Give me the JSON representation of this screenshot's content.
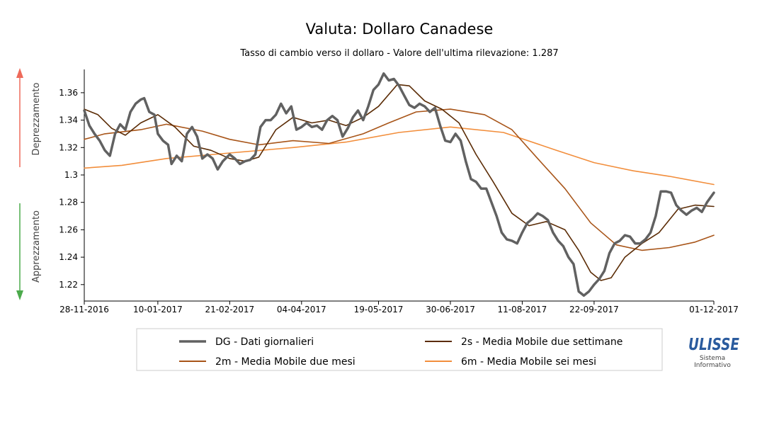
{
  "chart_data": {
    "type": "line",
    "title": "Valuta: Dollaro Canadese",
    "subtitle": "Tasso di cambio verso il dollaro - Valore dell'ultima rilevazione: 1.287",
    "xlabel": "",
    "ylabel": "",
    "side_labels": {
      "up": "Deprezzamento",
      "down": "Apprezzamento"
    },
    "x_range": [
      "2016-11-28",
      "2017-12-01"
    ],
    "ylim": [
      1.208,
      1.377
    ],
    "y_ticks": [
      1.22,
      1.24,
      1.26,
      1.28,
      1.3,
      1.32,
      1.34,
      1.36
    ],
    "x_tick_labels": [
      {
        "date": "2016-11-28",
        "label": "28-11-2016"
      },
      {
        "date": "2017-01-10",
        "label": "10-01-2017"
      },
      {
        "date": "2017-02-21",
        "label": "21-02-2017"
      },
      {
        "date": "2017-04-04",
        "label": "04-04-2017"
      },
      {
        "date": "2017-05-19",
        "label": "19-05-2017"
      },
      {
        "date": "2017-06-30",
        "label": "30-06-2017"
      },
      {
        "date": "2017-08-11",
        "label": "11-08-2017"
      },
      {
        "date": "2017-09-22",
        "label": "22-09-2017"
      },
      {
        "date": "2017-12-01",
        "label": "01-12-2017"
      }
    ],
    "grid": false,
    "legend_position": "bottom",
    "series": [
      {
        "name": "DG - Dati giornalieri",
        "color": "#616161",
        "points": [
          [
            "2016-11-28",
            1.347
          ],
          [
            "2016-12-01",
            1.336
          ],
          [
            "2016-12-04",
            1.33
          ],
          [
            "2016-12-07",
            1.325
          ],
          [
            "2016-12-10",
            1.318
          ],
          [
            "2016-12-13",
            1.314
          ],
          [
            "2016-12-16",
            1.33
          ],
          [
            "2016-12-19",
            1.337
          ],
          [
            "2016-12-22",
            1.333
          ],
          [
            "2016-12-25",
            1.346
          ],
          [
            "2016-12-28",
            1.352
          ],
          [
            "2016-12-31",
            1.355
          ],
          [
            "2017-01-02",
            1.356
          ],
          [
            "2017-01-05",
            1.346
          ],
          [
            "2017-01-08",
            1.344
          ],
          [
            "2017-01-10",
            1.33
          ],
          [
            "2017-01-13",
            1.325
          ],
          [
            "2017-01-16",
            1.322
          ],
          [
            "2017-01-18",
            1.308
          ],
          [
            "2017-01-21",
            1.314
          ],
          [
            "2017-01-24",
            1.31
          ],
          [
            "2017-01-27",
            1.33
          ],
          [
            "2017-01-30",
            1.335
          ],
          [
            "2017-02-02",
            1.328
          ],
          [
            "2017-02-05",
            1.312
          ],
          [
            "2017-02-08",
            1.315
          ],
          [
            "2017-02-11",
            1.312
          ],
          [
            "2017-02-14",
            1.304
          ],
          [
            "2017-02-17",
            1.31
          ],
          [
            "2017-02-21",
            1.315
          ],
          [
            "2017-02-24",
            1.312
          ],
          [
            "2017-02-27",
            1.308
          ],
          [
            "2017-03-02",
            1.31
          ],
          [
            "2017-03-05",
            1.311
          ],
          [
            "2017-03-08",
            1.315
          ],
          [
            "2017-03-11",
            1.335
          ],
          [
            "2017-03-14",
            1.34
          ],
          [
            "2017-03-17",
            1.34
          ],
          [
            "2017-03-20",
            1.344
          ],
          [
            "2017-03-23",
            1.352
          ],
          [
            "2017-03-26",
            1.345
          ],
          [
            "2017-03-29",
            1.35
          ],
          [
            "2017-04-01",
            1.333
          ],
          [
            "2017-04-04",
            1.335
          ],
          [
            "2017-04-07",
            1.338
          ],
          [
            "2017-04-10",
            1.335
          ],
          [
            "2017-04-13",
            1.336
          ],
          [
            "2017-04-16",
            1.333
          ],
          [
            "2017-04-19",
            1.34
          ],
          [
            "2017-04-22",
            1.343
          ],
          [
            "2017-04-25",
            1.34
          ],
          [
            "2017-04-28",
            1.328
          ],
          [
            "2017-05-01",
            1.334
          ],
          [
            "2017-05-04",
            1.342
          ],
          [
            "2017-05-07",
            1.347
          ],
          [
            "2017-05-10",
            1.34
          ],
          [
            "2017-05-13",
            1.35
          ],
          [
            "2017-05-16",
            1.362
          ],
          [
            "2017-05-19",
            1.366
          ],
          [
            "2017-05-22",
            1.374
          ],
          [
            "2017-05-25",
            1.369
          ],
          [
            "2017-05-28",
            1.37
          ],
          [
            "2017-05-31",
            1.365
          ],
          [
            "2017-06-03",
            1.358
          ],
          [
            "2017-06-06",
            1.351
          ],
          [
            "2017-06-09",
            1.349
          ],
          [
            "2017-06-12",
            1.352
          ],
          [
            "2017-06-15",
            1.35
          ],
          [
            "2017-06-18",
            1.346
          ],
          [
            "2017-06-21",
            1.349
          ],
          [
            "2017-06-24",
            1.336
          ],
          [
            "2017-06-27",
            1.325
          ],
          [
            "2017-06-30",
            1.324
          ],
          [
            "2017-07-03",
            1.33
          ],
          [
            "2017-07-06",
            1.325
          ],
          [
            "2017-07-09",
            1.31
          ],
          [
            "2017-07-12",
            1.297
          ],
          [
            "2017-07-15",
            1.295
          ],
          [
            "2017-07-18",
            1.29
          ],
          [
            "2017-07-21",
            1.29
          ],
          [
            "2017-07-24",
            1.28
          ],
          [
            "2017-07-27",
            1.27
          ],
          [
            "2017-07-30",
            1.258
          ],
          [
            "2017-08-02",
            1.253
          ],
          [
            "2017-08-05",
            1.252
          ],
          [
            "2017-08-08",
            1.25
          ],
          [
            "2017-08-11",
            1.258
          ],
          [
            "2017-08-14",
            1.265
          ],
          [
            "2017-08-17",
            1.268
          ],
          [
            "2017-08-20",
            1.272
          ],
          [
            "2017-08-23",
            1.27
          ],
          [
            "2017-08-26",
            1.267
          ],
          [
            "2017-08-29",
            1.258
          ],
          [
            "2017-09-01",
            1.252
          ],
          [
            "2017-09-04",
            1.248
          ],
          [
            "2017-09-07",
            1.24
          ],
          [
            "2017-09-10",
            1.235
          ],
          [
            "2017-09-13",
            1.215
          ],
          [
            "2017-09-16",
            1.212
          ],
          [
            "2017-09-19",
            1.215
          ],
          [
            "2017-09-22",
            1.22
          ],
          [
            "2017-09-25",
            1.224
          ],
          [
            "2017-09-28",
            1.23
          ],
          [
            "2017-10-01",
            1.243
          ],
          [
            "2017-10-04",
            1.25
          ],
          [
            "2017-10-07",
            1.252
          ],
          [
            "2017-10-10",
            1.256
          ],
          [
            "2017-10-13",
            1.255
          ],
          [
            "2017-10-16",
            1.25
          ],
          [
            "2017-10-19",
            1.25
          ],
          [
            "2017-10-22",
            1.253
          ],
          [
            "2017-10-25",
            1.258
          ],
          [
            "2017-10-28",
            1.27
          ],
          [
            "2017-10-31",
            1.288
          ],
          [
            "2017-11-03",
            1.288
          ],
          [
            "2017-11-06",
            1.287
          ],
          [
            "2017-11-09",
            1.278
          ],
          [
            "2017-11-12",
            1.274
          ],
          [
            "2017-11-15",
            1.271
          ],
          [
            "2017-11-18",
            1.274
          ],
          [
            "2017-11-21",
            1.276
          ],
          [
            "2017-11-24",
            1.273
          ],
          [
            "2017-11-27",
            1.28
          ],
          [
            "2017-12-01",
            1.287
          ]
        ]
      },
      {
        "name": "2s - Media Mobile due settimane",
        "color": "#5b2c06",
        "points": [
          [
            "2016-11-28",
            1.348
          ],
          [
            "2016-12-06",
            1.344
          ],
          [
            "2016-12-14",
            1.334
          ],
          [
            "2016-12-22",
            1.329
          ],
          [
            "2016-12-31",
            1.338
          ],
          [
            "2017-01-10",
            1.344
          ],
          [
            "2017-01-20",
            1.335
          ],
          [
            "2017-01-31",
            1.321
          ],
          [
            "2017-02-10",
            1.318
          ],
          [
            "2017-02-21",
            1.312
          ],
          [
            "2017-03-02",
            1.31
          ],
          [
            "2017-03-10",
            1.313
          ],
          [
            "2017-03-20",
            1.333
          ],
          [
            "2017-03-30",
            1.342
          ],
          [
            "2017-04-10",
            1.338
          ],
          [
            "2017-04-20",
            1.34
          ],
          [
            "2017-04-30",
            1.336
          ],
          [
            "2017-05-10",
            1.342
          ],
          [
            "2017-05-19",
            1.35
          ],
          [
            "2017-05-30",
            1.366
          ],
          [
            "2017-06-06",
            1.365
          ],
          [
            "2017-06-15",
            1.354
          ],
          [
            "2017-06-25",
            1.348
          ],
          [
            "2017-07-05",
            1.338
          ],
          [
            "2017-07-15",
            1.315
          ],
          [
            "2017-07-25",
            1.295
          ],
          [
            "2017-08-05",
            1.272
          ],
          [
            "2017-08-15",
            1.263
          ],
          [
            "2017-08-25",
            1.266
          ],
          [
            "2017-09-05",
            1.26
          ],
          [
            "2017-09-13",
            1.245
          ],
          [
            "2017-09-20",
            1.229
          ],
          [
            "2017-09-26",
            1.223
          ],
          [
            "2017-10-02",
            1.225
          ],
          [
            "2017-10-10",
            1.24
          ],
          [
            "2017-10-20",
            1.25
          ],
          [
            "2017-10-30",
            1.258
          ],
          [
            "2017-11-10",
            1.275
          ],
          [
            "2017-11-20",
            1.278
          ],
          [
            "2017-12-01",
            1.277
          ]
        ]
      },
      {
        "name": "2m - Media Mobile due mesi",
        "color": "#a85519",
        "points": [
          [
            "2016-11-28",
            1.326
          ],
          [
            "2016-12-10",
            1.33
          ],
          [
            "2016-12-31",
            1.333
          ],
          [
            "2017-01-15",
            1.337
          ],
          [
            "2017-02-05",
            1.332
          ],
          [
            "2017-02-21",
            1.326
          ],
          [
            "2017-03-10",
            1.322
          ],
          [
            "2017-03-30",
            1.325
          ],
          [
            "2017-04-20",
            1.323
          ],
          [
            "2017-05-10",
            1.33
          ],
          [
            "2017-05-25",
            1.338
          ],
          [
            "2017-06-10",
            1.346
          ],
          [
            "2017-06-30",
            1.348
          ],
          [
            "2017-07-20",
            1.344
          ],
          [
            "2017-08-05",
            1.333
          ],
          [
            "2017-08-20",
            1.312
          ],
          [
            "2017-09-05",
            1.29
          ],
          [
            "2017-09-20",
            1.265
          ],
          [
            "2017-10-05",
            1.249
          ],
          [
            "2017-10-20",
            1.245
          ],
          [
            "2017-11-05",
            1.247
          ],
          [
            "2017-11-20",
            1.251
          ],
          [
            "2017-12-01",
            1.256
          ]
        ]
      },
      {
        "name": "6m - Media Mobile sei mesi",
        "color": "#f28e3c",
        "points": [
          [
            "2016-11-28",
            1.305
          ],
          [
            "2016-12-20",
            1.307
          ],
          [
            "2017-01-15",
            1.312
          ],
          [
            "2017-02-21",
            1.316
          ],
          [
            "2017-03-30",
            1.32
          ],
          [
            "2017-04-30",
            1.324
          ],
          [
            "2017-05-31",
            1.331
          ],
          [
            "2017-06-30",
            1.335
          ],
          [
            "2017-07-31",
            1.331
          ],
          [
            "2017-08-31",
            1.318
          ],
          [
            "2017-09-22",
            1.309
          ],
          [
            "2017-10-15",
            1.303
          ],
          [
            "2017-11-05",
            1.299
          ],
          [
            "2017-12-01",
            1.293
          ]
        ]
      }
    ]
  },
  "arrows": {
    "up_color": "#ee6a5a",
    "down_color": "#4caa4c"
  },
  "logo": {
    "name": "ULISSE",
    "line1": "Sistema",
    "line2": "Informativo",
    "color": "#2a5b9e"
  }
}
